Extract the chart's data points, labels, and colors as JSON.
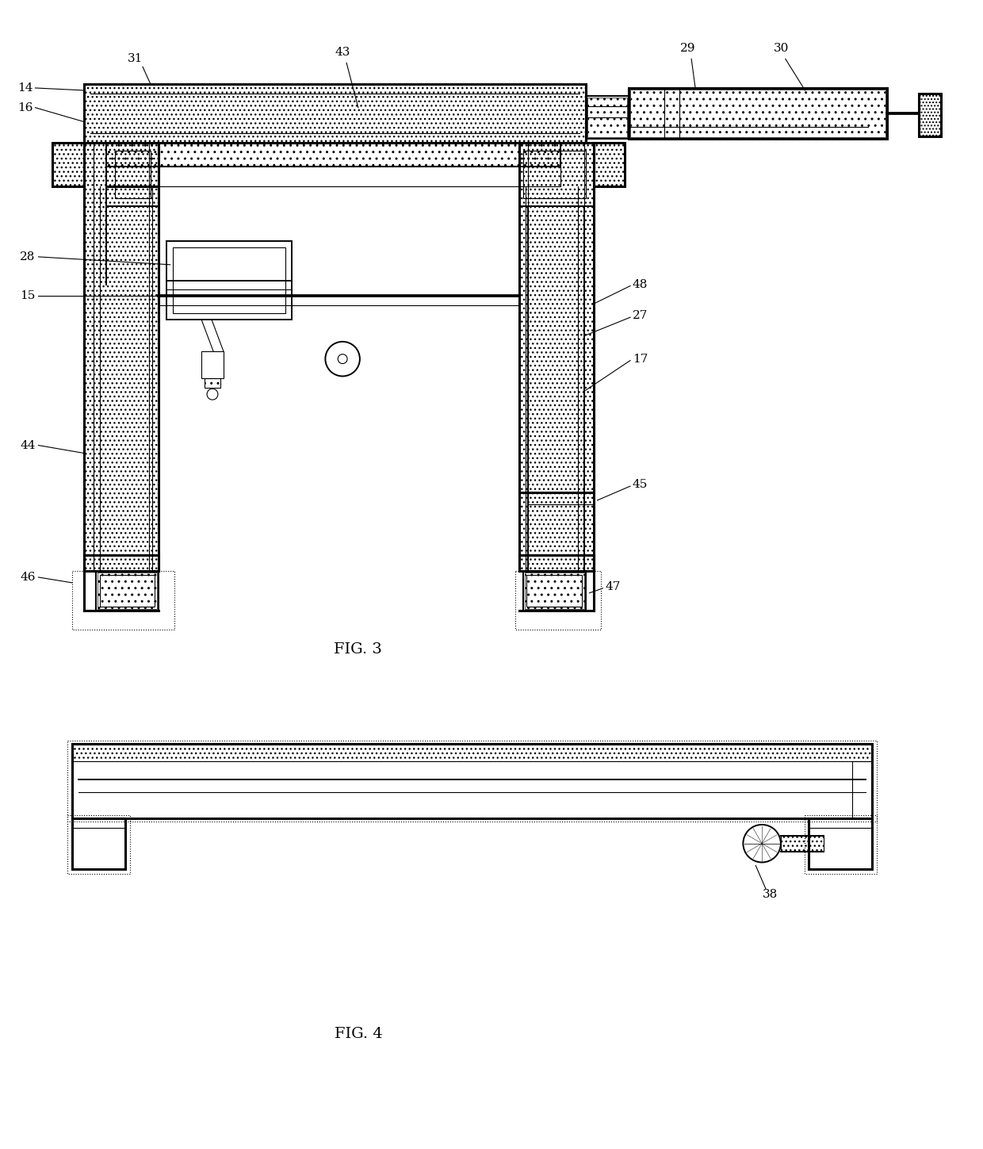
{
  "fig_width": 12.4,
  "fig_height": 14.49,
  "bg_color": "#ffffff",
  "fig3_caption": "FIG. 3",
  "fig4_caption": "FIG. 4",
  "label_fontsize": 11,
  "caption_fontsize": 14,
  "lw_thick": 2.2,
  "lw_med": 1.4,
  "lw_thin": 0.8,
  "lw_vthin": 0.5
}
